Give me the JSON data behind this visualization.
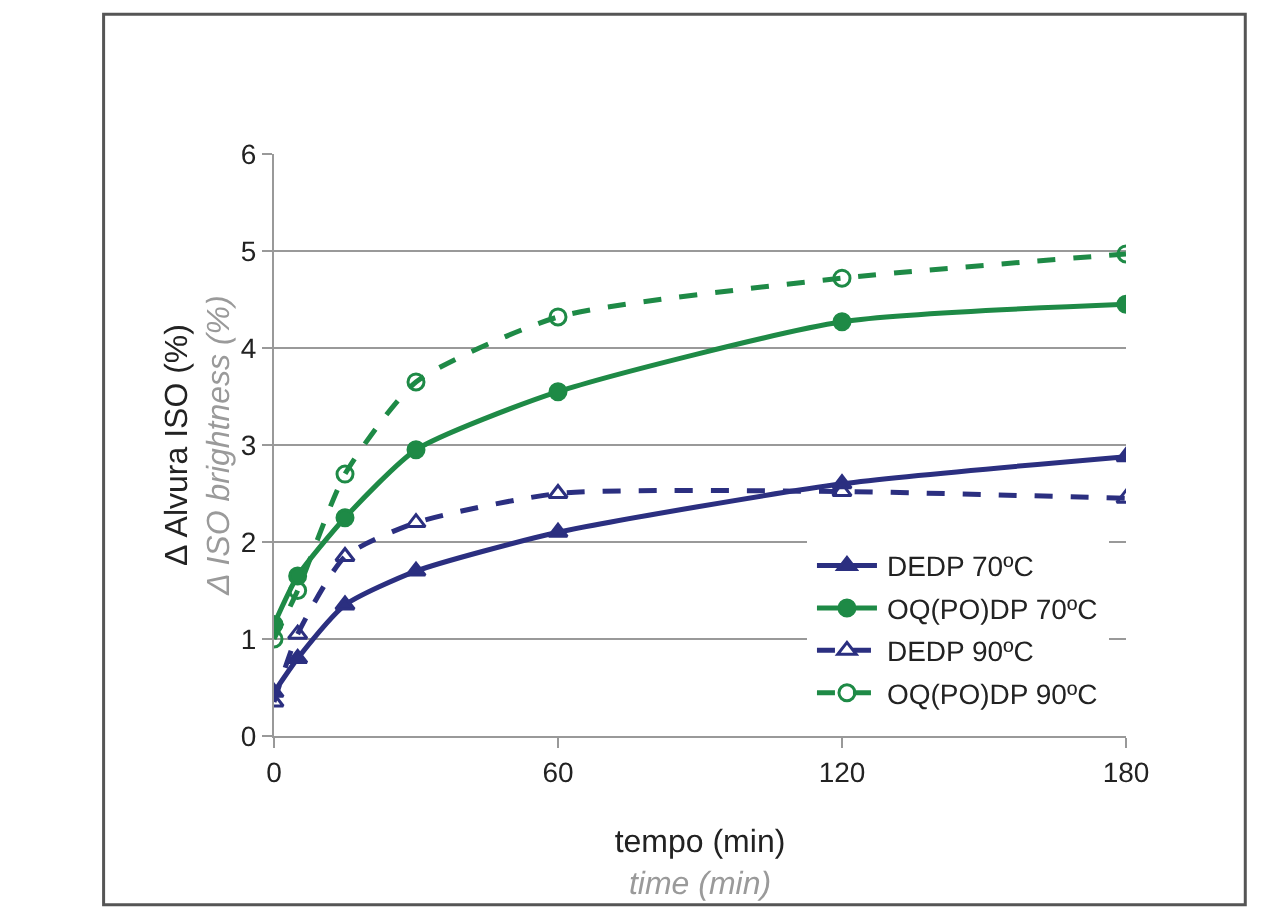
{
  "chart_data": {
    "type": "line",
    "xlabel": "tempo (min)\ntime (min)",
    "ylabel": "Δ Alvura ISO (%)\nΔ ISO brightness (%)",
    "x": [
      0,
      5,
      15,
      30,
      60,
      120,
      180
    ],
    "xlim": [
      0,
      180
    ],
    "xticks": [
      0,
      60,
      120,
      180
    ],
    "ylim": [
      0,
      6
    ],
    "yticks": [
      0,
      1,
      2,
      3,
      4,
      5,
      6
    ],
    "grid": "y",
    "legend": "bottom right",
    "series": [
      {
        "name": "DEDP 70ºC",
        "color": "#2b2f80",
        "marker": "triangle",
        "line_style": "solid",
        "values": [
          0.45,
          0.8,
          1.35,
          1.7,
          2.1,
          2.6,
          2.88
        ]
      },
      {
        "name": "OQ(PO)DP 70ºC",
        "color": "#1e8a46",
        "marker": "circle",
        "line_style": "solid",
        "values": [
          1.15,
          1.65,
          2.25,
          2.95,
          3.55,
          4.27,
          4.45
        ]
      },
      {
        "name": "DEDP 90ºC",
        "color": "#2b2f80",
        "marker": "triangle-open",
        "line_style": "dashed",
        "values": [
          0.35,
          1.05,
          1.85,
          2.2,
          2.5,
          2.52,
          2.45
        ]
      },
      {
        "name": "OQ(PO)DP 90ºC",
        "color": "#1e8a46",
        "marker": "circle-open",
        "line_style": "dashed",
        "values": [
          1.0,
          1.5,
          2.7,
          3.65,
          4.32,
          4.72,
          4.97
        ]
      }
    ]
  }
}
